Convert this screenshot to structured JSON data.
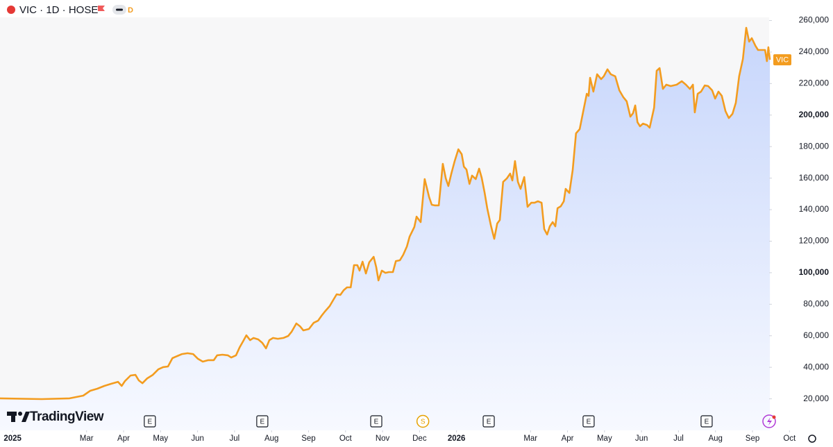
{
  "chart_data": {
    "type": "area",
    "title": "VIC · 1D · HOSE",
    "interval_badge": "D",
    "watermark": "TradingView",
    "xlim": [
      -0.34,
      20.45
    ],
    "ylim": [
      0,
      262000
    ],
    "grid": false,
    "xticks": [
      {
        "value": 0,
        "label": "2025"
      },
      {
        "value": 2,
        "label": "Mar"
      },
      {
        "value": 3,
        "label": "Apr"
      },
      {
        "value": 4,
        "label": "May"
      },
      {
        "value": 5,
        "label": "Jun"
      },
      {
        "value": 6,
        "label": "Jul"
      },
      {
        "value": 7,
        "label": "Aug"
      },
      {
        "value": 8,
        "label": "Sep"
      },
      {
        "value": 9,
        "label": "Oct"
      },
      {
        "value": 10,
        "label": "Nov"
      },
      {
        "value": 11,
        "label": "Dec"
      },
      {
        "value": 12,
        "label": "2026"
      },
      {
        "value": 14,
        "label": "Mar"
      },
      {
        "value": 15,
        "label": "Apr"
      },
      {
        "value": 16,
        "label": "May"
      },
      {
        "value": 17,
        "label": "Jun"
      },
      {
        "value": 18,
        "label": "Jul"
      },
      {
        "value": 19,
        "label": "Aug"
      },
      {
        "value": 20,
        "label": "Sep"
      },
      {
        "value": 21,
        "label": "Oct"
      }
    ],
    "yticks": [
      {
        "value": 20000,
        "label": "20,000"
      },
      {
        "value": 40000,
        "label": "40,000"
      },
      {
        "value": 60000,
        "label": "60,000"
      },
      {
        "value": 80000,
        "label": "80,000"
      },
      {
        "value": 100000,
        "label": "100,000"
      },
      {
        "value": 120000,
        "label": "120,000"
      },
      {
        "value": 140000,
        "label": "140,000"
      },
      {
        "value": 160000,
        "label": "160,000"
      },
      {
        "value": 180000,
        "label": "180,000"
      },
      {
        "value": 200000,
        "label": "200,000"
      },
      {
        "value": 220000,
        "label": "220,000"
      },
      {
        "value": 240000,
        "label": "240,000"
      },
      {
        "value": 260000,
        "label": "260,000"
      }
    ],
    "events": [
      {
        "x": 3.71,
        "label": "E",
        "color": "#131722"
      },
      {
        "x": 6.75,
        "label": "E",
        "color": "#131722"
      },
      {
        "x": 9.83,
        "label": "E",
        "color": "#131722"
      },
      {
        "x": 11.09,
        "label": "S",
        "color": "#e6a100"
      },
      {
        "x": 12.87,
        "label": "E",
        "color": "#131722"
      },
      {
        "x": 15.57,
        "label": "E",
        "color": "#131722"
      },
      {
        "x": 18.76,
        "label": "E",
        "color": "#131722"
      }
    ],
    "x": [
      -0.34,
      0.79,
      1.54,
      1.91,
      2.1,
      2.29,
      2.48,
      2.66,
      2.85,
      2.95,
      3.04,
      3.19,
      3.32,
      3.41,
      3.51,
      3.64,
      3.79,
      3.94,
      4.07,
      4.2,
      4.32,
      4.45,
      4.58,
      4.73,
      4.88,
      5.01,
      5.14,
      5.29,
      5.44,
      5.53,
      5.67,
      5.82,
      5.91,
      6.04,
      6.14,
      6.23,
      6.32,
      6.42,
      6.51,
      6.64,
      6.75,
      6.85,
      6.94,
      7.04,
      7.17,
      7.32,
      7.45,
      7.54,
      7.67,
      7.77,
      7.86,
      8.01,
      8.14,
      8.26,
      8.35,
      8.44,
      8.57,
      8.67,
      8.76,
      8.86,
      8.95,
      9.04,
      9.14,
      9.23,
      9.32,
      9.38,
      9.46,
      9.55,
      9.64,
      9.76,
      9.83,
      9.89,
      9.98,
      10.08,
      10.17,
      10.28,
      10.36,
      10.47,
      10.56,
      10.66,
      10.73,
      10.86,
      10.92,
      11.03,
      11.14,
      11.26,
      11.33,
      11.41,
      11.52,
      11.63,
      11.71,
      11.78,
      11.86,
      11.95,
      12.05,
      12.14,
      12.2,
      12.27,
      12.35,
      12.42,
      12.52,
      12.61,
      12.68,
      12.76,
      12.83,
      12.93,
      13.02,
      13.1,
      13.17,
      13.26,
      13.36,
      13.45,
      13.51,
      13.58,
      13.66,
      13.73,
      13.83,
      13.92,
      14.02,
      14.11,
      14.2,
      14.3,
      14.37,
      14.45,
      14.52,
      14.6,
      14.67,
      14.73,
      14.82,
      14.9,
      14.95,
      15.05,
      15.14,
      15.23,
      15.33,
      15.42,
      15.52,
      15.57,
      15.61,
      15.7,
      15.8,
      15.91,
      15.98,
      16.08,
      16.17,
      16.29,
      16.4,
      16.51,
      16.6,
      16.7,
      16.77,
      16.83,
      16.89,
      16.96,
      17.04,
      17.15,
      17.22,
      17.34,
      17.41,
      17.49,
      17.58,
      17.67,
      17.79,
      17.95,
      18.09,
      18.2,
      18.31,
      18.39,
      18.44,
      18.52,
      18.61,
      18.71,
      18.8,
      18.91,
      18.99,
      19.08,
      19.17,
      19.27,
      19.36,
      19.46,
      19.55,
      19.64,
      19.74,
      19.83,
      19.91,
      19.98,
      20.08,
      20.15,
      20.26,
      20.34,
      20.39,
      20.43,
      20.47
    ],
    "series": [
      {
        "name": "VIC",
        "color": "#f39c1f",
        "values": [
          20300,
          19800,
          20300,
          22000,
          25100,
          26400,
          28200,
          29500,
          30800,
          28200,
          31300,
          34800,
          35200,
          31700,
          29900,
          33000,
          35200,
          38700,
          40100,
          40500,
          45800,
          47100,
          48400,
          48900,
          48400,
          45400,
          43600,
          44500,
          44500,
          47600,
          48000,
          47600,
          46200,
          47600,
          52800,
          56400,
          60300,
          57200,
          58600,
          57700,
          55500,
          52000,
          57200,
          58600,
          58100,
          58600,
          59900,
          62500,
          67800,
          66000,
          63400,
          64300,
          68200,
          69600,
          72600,
          75300,
          78800,
          82800,
          86300,
          85900,
          88900,
          90700,
          90700,
          104800,
          104800,
          101300,
          107000,
          99500,
          106600,
          110100,
          103500,
          95100,
          101300,
          99900,
          100400,
          100400,
          107400,
          107900,
          111400,
          116700,
          122800,
          129000,
          135600,
          132100,
          159400,
          147900,
          143100,
          142700,
          142700,
          169100,
          159800,
          155000,
          162900,
          170800,
          178300,
          175200,
          167300,
          165500,
          156300,
          161600,
          159400,
          166000,
          160300,
          150600,
          140900,
          129900,
          121500,
          131200,
          133400,
          157600,
          159800,
          162900,
          158500,
          170800,
          157600,
          153200,
          160700,
          141800,
          144400,
          144400,
          145300,
          144400,
          127700,
          124200,
          129400,
          132100,
          129400,
          140900,
          142200,
          145300,
          153200,
          150600,
          165100,
          188400,
          191100,
          201700,
          213500,
          212200,
          223700,
          214900,
          225900,
          222800,
          224600,
          229000,
          225900,
          224600,
          215700,
          211300,
          208700,
          199000,
          201200,
          206100,
          195500,
          192900,
          194600,
          193700,
          192000,
          204700,
          228100,
          229800,
          216600,
          219300,
          218400,
          219300,
          221500,
          219300,
          216600,
          219300,
          201700,
          213500,
          214900,
          218800,
          218400,
          215700,
          210500,
          214900,
          212200,
          202500,
          198100,
          200800,
          207800,
          224600,
          235600,
          255400,
          246600,
          248800,
          243900,
          241300,
          241300,
          241300,
          234200,
          243000,
          235100
        ]
      }
    ]
  }
}
